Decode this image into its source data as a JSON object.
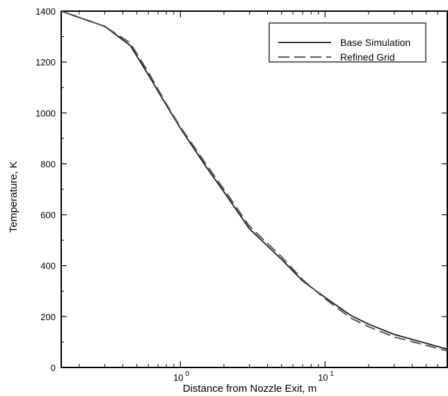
{
  "chart_data": {
    "type": "line",
    "title": "",
    "xlabel": "Distance from Nozzle Exit, m",
    "ylabel": "Temperature, K",
    "xscale": "log",
    "xlim": [
      0.15,
      70
    ],
    "ylim": [
      0,
      1400
    ],
    "grid": false,
    "legend_position": "top-right",
    "y_ticks": [
      0,
      200,
      400,
      600,
      800,
      1000,
      1200,
      1400
    ],
    "x_ticks": [
      {
        "value": 1,
        "base": "10",
        "exp": "0"
      },
      {
        "value": 10,
        "base": "10",
        "exp": "1"
      }
    ],
    "series": [
      {
        "name": "Base Simulation",
        "style": "solid",
        "color": "#1a1a1a",
        "x": [
          0.15,
          0.3,
          0.45,
          0.6,
          0.8,
          1.0,
          1.5,
          2.0,
          3.0,
          5.0,
          7.0,
          10.0,
          15.0,
          20.0,
          30.0,
          50.0,
          70.0
        ],
        "y": [
          1400,
          1340,
          1265,
          1150,
          1030,
          940,
          790,
          690,
          545,
          425,
          340,
          275,
          205,
          170,
          130,
          95,
          72
        ]
      },
      {
        "name": "Refined Grid",
        "style": "dashed",
        "color": "#555555",
        "x": [
          0.15,
          0.3,
          0.45,
          0.6,
          0.8,
          1.0,
          1.5,
          2.0,
          3.0,
          5.0,
          7.0,
          10.0,
          15.0,
          20.0,
          30.0,
          50.0,
          70.0
        ],
        "y": [
          1400,
          1340,
          1275,
          1160,
          1035,
          945,
          800,
          700,
          555,
          435,
          345,
          270,
          195,
          160,
          120,
          87,
          65
        ]
      }
    ]
  }
}
